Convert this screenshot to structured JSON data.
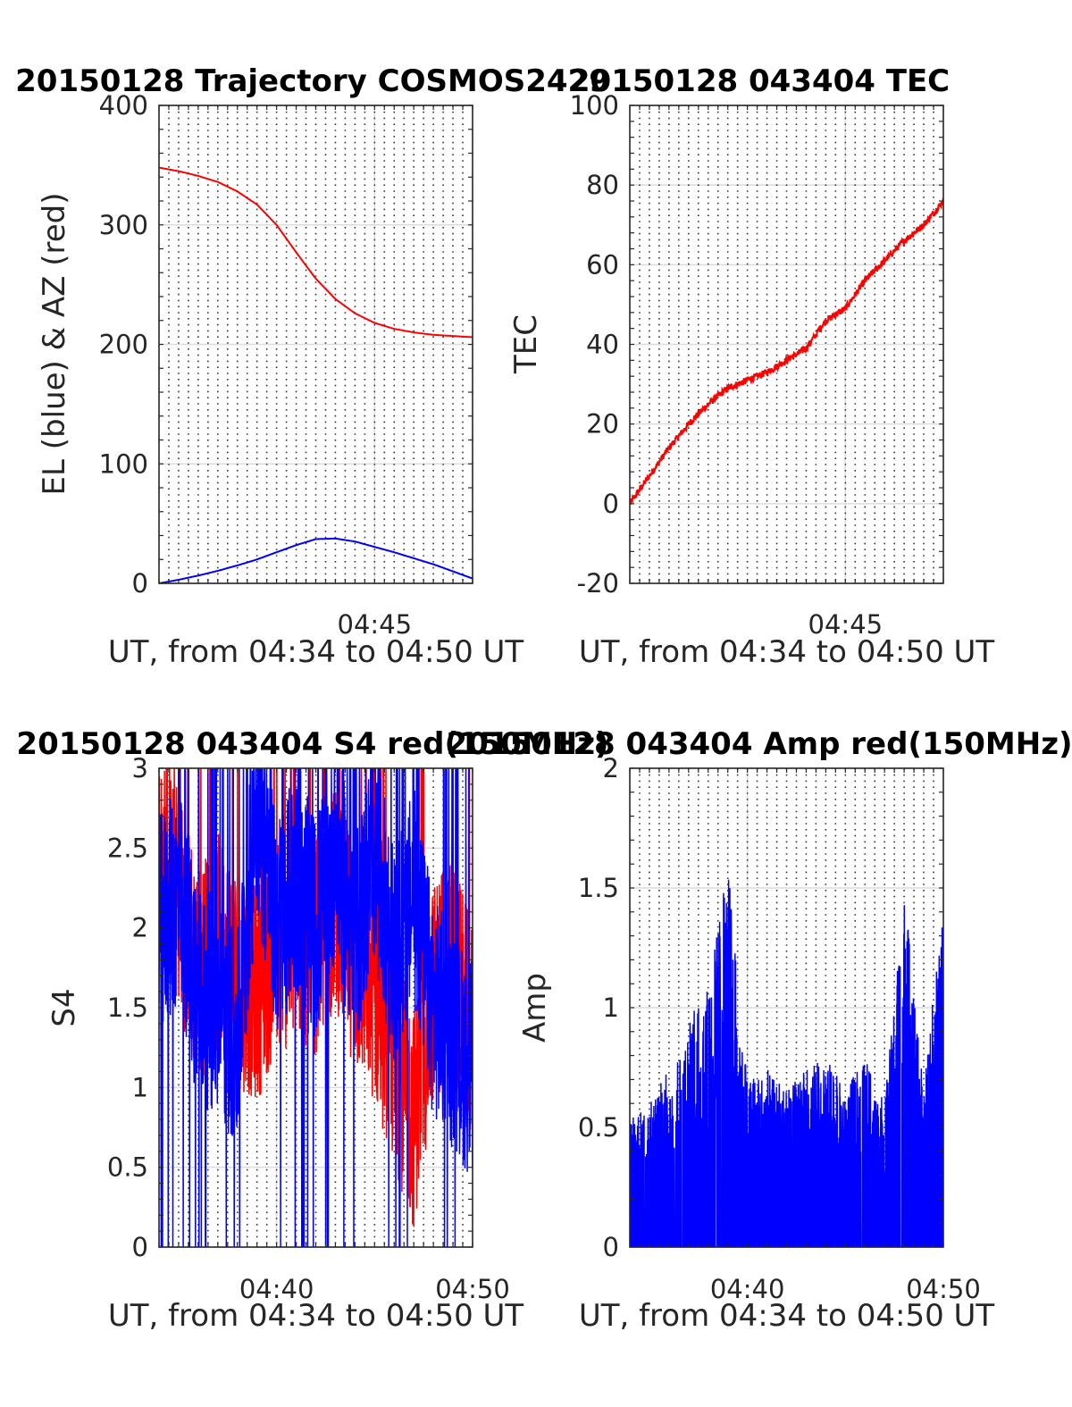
{
  "figure": {
    "background": "#ffffff"
  },
  "chart_data": [
    {
      "type": "line",
      "title": "20150128 Trajectory COSMOS2429",
      "xlabel": "UT, from 04:34 to 04:50 UT",
      "ylabel": "EL (blue) & AZ (red)",
      "xlim": [
        "04:34",
        "04:50"
      ],
      "ylim": [
        0,
        400
      ],
      "yticks": [
        0,
        100,
        200,
        300,
        400
      ],
      "yticklabels": [
        "0",
        "100",
        "200",
        "300",
        "400"
      ],
      "xticklabels": [
        "04:45"
      ],
      "grid": true,
      "series": [
        {
          "color": "#ff0000",
          "x": [
            "04:34",
            "04:35",
            "04:36",
            "04:37",
            "04:38",
            "04:39",
            "04:40",
            "04:41",
            "04:42",
            "04:43",
            "04:44",
            "04:45",
            "04:46",
            "04:47",
            "04:48",
            "04:49",
            "04:50"
          ],
          "values": [
            348,
            345,
            341,
            336,
            328,
            317,
            300,
            277,
            255,
            238,
            226,
            218,
            213,
            210,
            208,
            207,
            206
          ]
        },
        {
          "color": "#0000ff",
          "x": [
            "04:34",
            "04:35",
            "04:36",
            "04:37",
            "04:38",
            "04:39",
            "04:40",
            "04:41",
            "04:42",
            "04:43",
            "04:44",
            "04:45",
            "04:46",
            "04:47",
            "04:48",
            "04:49",
            "04:50"
          ],
          "values": [
            0,
            3,
            6.5,
            10.5,
            15,
            20,
            26,
            32,
            37,
            37.5,
            35,
            30.5,
            26,
            21,
            16,
            10,
            4
          ]
        }
      ]
    },
    {
      "type": "line",
      "title": "20150128 043404 TEC",
      "xlabel": "UT, from 04:34 to 04:50 UT",
      "ylabel": "TEC",
      "xlim": [
        "04:34",
        "04:50"
      ],
      "ylim": [
        -20,
        100
      ],
      "yticks": [
        -20,
        0,
        20,
        40,
        60,
        80,
        100
      ],
      "yticklabels": [
        "-20",
        "0",
        "20",
        "40",
        "60",
        "80",
        "100"
      ],
      "xticklabels": [
        "04:45"
      ],
      "grid": true,
      "series": [
        {
          "color": "#ff0000",
          "x": [
            "04:34",
            "04:35",
            "04:36",
            "04:37",
            "04:38",
            "04:39",
            "04:40",
            "04:41",
            "04:42",
            "04:43",
            "04:44",
            "04:45",
            "04:46",
            "04:47",
            "04:48",
            "04:49",
            "04:50"
          ],
          "values": [
            0,
            7,
            14,
            20,
            25,
            29,
            31,
            33,
            36,
            39,
            46,
            49,
            56,
            61,
            66,
            70,
            76
          ]
        }
      ]
    },
    {
      "type": "line",
      "title": "20150128 043404 S4 red(150MHz)",
      "xlabel": "UT, from 04:34 to 04:50 UT",
      "ylabel": "S4",
      "xlim": [
        "04:34",
        "04:50"
      ],
      "ylim": [
        0,
        3
      ],
      "yticks": [
        0,
        0.5,
        1,
        1.5,
        2,
        2.5,
        3
      ],
      "yticklabels": [
        "0",
        "0.5",
        "1",
        "1.5",
        "2",
        "2.5",
        "3"
      ],
      "xticklabels": [
        "04:40",
        "04:50"
      ],
      "grid": true,
      "series": [
        {
          "color": "#ff0000",
          "x": [
            "04:34",
            "04:35",
            "04:36",
            "04:37",
            "04:38",
            "04:39",
            "04:40",
            "04:41",
            "04:42",
            "04:43",
            "04:44",
            "04:45",
            "04:46",
            "04:47",
            "04:48",
            "04:49",
            "04:50"
          ],
          "values": [
            2.4,
            2.2,
            1.7,
            1.9,
            1.7,
            1.6,
            1.9,
            1.95,
            1.9,
            2.2,
            1.8,
            1.6,
            1.2,
            0.8,
            1.6,
            1.8,
            1.3
          ]
        },
        {
          "color": "#0000ff",
          "x": [
            "04:34",
            "04:35",
            "04:36",
            "04:37",
            "04:38",
            "04:39",
            "04:40",
            "04:41",
            "04:42",
            "04:43",
            "04:44",
            "04:45",
            "04:46",
            "04:47",
            "04:48",
            "04:49",
            "04:50"
          ],
          "values": [
            2.0,
            2.2,
            1.6,
            1.5,
            1.3,
            2.8,
            2.0,
            2.3,
            2.0,
            2.5,
            1.9,
            2.5,
            1.8,
            2.2,
            1.5,
            1.3,
            1.1
          ]
        }
      ]
    },
    {
      "type": "line",
      "title": "20150128 043404 Amp red(150MHz)",
      "xlabel": "UT, from 04:34 to 04:50 UT",
      "ylabel": "Amp",
      "xlim": [
        "04:34",
        "04:50"
      ],
      "ylim": [
        0,
        2
      ],
      "yticks": [
        0,
        0.5,
        1,
        1.5,
        2
      ],
      "yticklabels": [
        "0",
        "0.5",
        "1",
        "1.5",
        "2"
      ],
      "xticklabels": [
        "04:40",
        "04:50"
      ],
      "grid": true,
      "series": [
        {
          "color": "#0000ff",
          "x": [
            "04:34",
            "04:35",
            "04:36",
            "04:37",
            "04:38",
            "04:39",
            "04:40",
            "04:41",
            "04:42",
            "04:43",
            "04:44",
            "04:45",
            "04:46",
            "04:47",
            "04:48",
            "04:49",
            "04:50"
          ],
          "values": [
            0.55,
            0.6,
            0.75,
            0.95,
            1.1,
            1.6,
            0.7,
            0.75,
            0.65,
            0.75,
            0.8,
            0.65,
            0.8,
            0.6,
            1.5,
            0.65,
            1.5
          ]
        }
      ]
    }
  ]
}
